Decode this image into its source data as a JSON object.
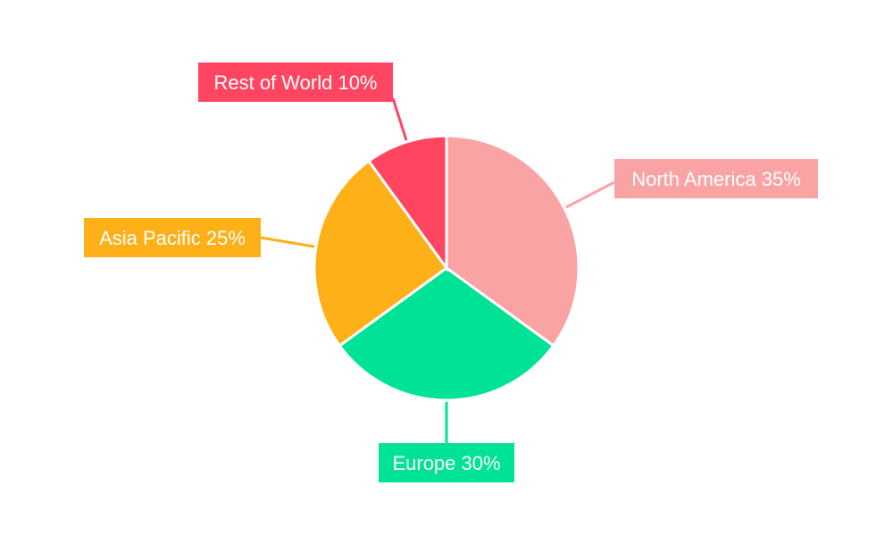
{
  "chart_data": {
    "type": "pie",
    "title": "",
    "start": "top",
    "direction": "clockwise",
    "slices": [
      {
        "name": "North America",
        "value": 35,
        "label": "North America 35%",
        "color": "#F9A3A4"
      },
      {
        "name": "Europe",
        "value": 30,
        "label": "Europe 30%",
        "color": "#00E396"
      },
      {
        "name": "Asia Pacific",
        "value": 25,
        "label": "Asia Pacific 25%",
        "color": "#FEB019"
      },
      {
        "name": "Rest of World",
        "value": 10,
        "label": "Rest of World 10%",
        "color": "#FF4560"
      }
    ]
  }
}
